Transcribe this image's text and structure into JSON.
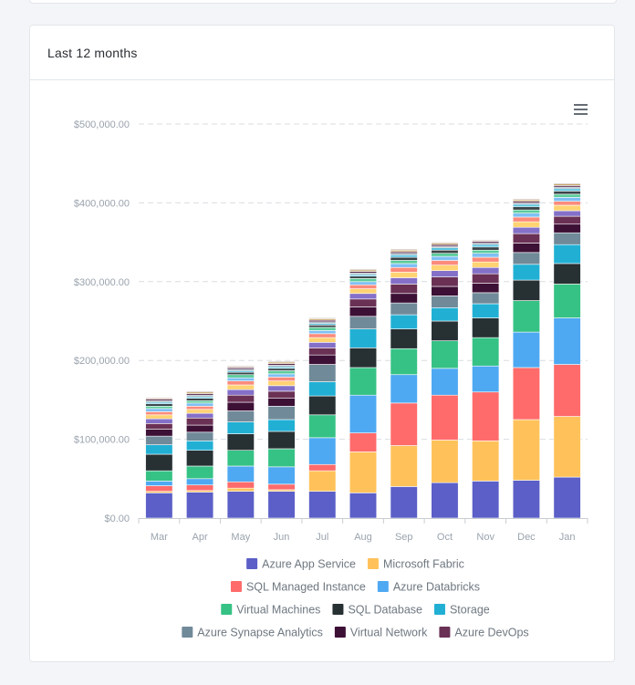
{
  "card": {
    "title": "Last 12 months"
  },
  "menu": {
    "icon": "hamburger-menu-icon"
  },
  "chart_data": {
    "type": "bar",
    "stacked": true,
    "title": "Last 12 months",
    "xlabel": "",
    "ylabel": "",
    "ylim": [
      0,
      500000
    ],
    "yticks": [
      0,
      100000,
      200000,
      300000,
      400000,
      500000
    ],
    "ytick_labels": [
      "$0.00",
      "$100,000.00",
      "$200,000.00",
      "$300,000.00",
      "$400,000.00",
      "$500,000.00"
    ],
    "grid": true,
    "legend_position": "bottom",
    "categories": [
      "Mar",
      "Apr",
      "May",
      "Jun",
      "Jul",
      "Aug",
      "Sep",
      "Oct",
      "Nov",
      "Dec",
      "Jan"
    ],
    "series": [
      {
        "name": "Azure App Service",
        "color": "#5b5fc7",
        "legend": true,
        "values": [
          32000,
          33000,
          34000,
          34000,
          34000,
          32000,
          40000,
          45000,
          47000,
          48000,
          52000
        ]
      },
      {
        "name": "Microsoft Fabric",
        "color": "#ffc25a",
        "legend": true,
        "values": [
          2000,
          2000,
          4000,
          2000,
          26000,
          52000,
          52000,
          54000,
          51000,
          77000,
          77000
        ]
      },
      {
        "name": "SQL Managed Instance",
        "color": "#ff6b6b",
        "legend": true,
        "values": [
          7000,
          7000,
          8000,
          7000,
          8000,
          24000,
          54000,
          57000,
          62000,
          66000,
          66000
        ]
      },
      {
        "name": "Azure Databricks",
        "color": "#4ea9f2",
        "legend": true,
        "values": [
          6000,
          8000,
          20000,
          22000,
          34000,
          48000,
          36000,
          34000,
          33000,
          45000,
          59000
        ]
      },
      {
        "name": "Virtual Machines",
        "color": "#36c285",
        "legend": true,
        "values": [
          13000,
          16000,
          20000,
          23000,
          29000,
          35000,
          33000,
          35000,
          36000,
          40000,
          43000
        ]
      },
      {
        "name": "SQL Database",
        "color": "#273134",
        "legend": true,
        "values": [
          21000,
          20000,
          21000,
          22000,
          24000,
          25000,
          25000,
          25000,
          25000,
          26000,
          26000
        ]
      },
      {
        "name": "Storage",
        "color": "#21b0d4",
        "legend": true,
        "values": [
          12000,
          12000,
          15000,
          15000,
          18000,
          24000,
          18000,
          17000,
          18000,
          20000,
          24000
        ]
      },
      {
        "name": "Azure Synapse Analytics",
        "color": "#708a99",
        "legend": true,
        "values": [
          11000,
          11000,
          14000,
          17000,
          22000,
          16000,
          15000,
          15000,
          14000,
          15000,
          15000
        ]
      },
      {
        "name": "Virtual Network",
        "color": "#3d1036",
        "legend": true,
        "values": [
          9000,
          9000,
          11000,
          10000,
          12000,
          12000,
          12000,
          12000,
          12000,
          12000,
          11000
        ]
      },
      {
        "name": "Azure DevOps",
        "color": "#6a3155",
        "legend": true,
        "values": [
          7000,
          9000,
          9000,
          9000,
          9000,
          10000,
          12000,
          12000,
          12000,
          12000,
          10000
        ]
      },
      {
        "name": "",
        "color": "#8470c8",
        "legend": false,
        "values": [
          6000,
          6000,
          7000,
          7000,
          7000,
          7000,
          8000,
          8000,
          8000,
          8000,
          7000
        ]
      },
      {
        "name": "",
        "color": "#ffd372",
        "legend": false,
        "values": [
          5000,
          5000,
          6000,
          6000,
          6000,
          6000,
          7000,
          7000,
          7000,
          7000,
          7000
        ]
      },
      {
        "name": "",
        "color": "#fb8b7c",
        "legend": false,
        "values": [
          4000,
          4000,
          5000,
          5000,
          5000,
          5000,
          6000,
          6000,
          6000,
          6000,
          5000
        ]
      },
      {
        "name": "",
        "color": "#7ec0f4",
        "legend": false,
        "values": [
          4000,
          4000,
          4000,
          4000,
          4000,
          4000,
          5000,
          5000,
          5000,
          5000,
          5000
        ]
      },
      {
        "name": "",
        "color": "#5ccc9a",
        "legend": false,
        "values": [
          3000,
          3000,
          4000,
          4000,
          4000,
          4000,
          4000,
          4000,
          4000,
          4000,
          4000
        ]
      },
      {
        "name": "",
        "color": "#3b4448",
        "legend": false,
        "values": [
          3000,
          3000,
          3000,
          3000,
          3000,
          3000,
          4000,
          4000,
          4000,
          4000,
          4000
        ]
      },
      {
        "name": "",
        "color": "#55c2de",
        "legend": false,
        "values": [
          2000,
          2000,
          2000,
          2000,
          2000,
          2000,
          3000,
          3000,
          3000,
          3000,
          3000
        ]
      },
      {
        "name": "",
        "color": "#93a5b0",
        "legend": false,
        "values": [
          2000,
          2000,
          2000,
          2000,
          2000,
          2000,
          2000,
          2000,
          2000,
          2000,
          2000
        ]
      },
      {
        "name": "",
        "color": "#562750",
        "legend": false,
        "values": [
          2000,
          2000,
          2000,
          2000,
          2000,
          2000,
          2000,
          2000,
          2000,
          2000,
          2000
        ]
      },
      {
        "name": "",
        "color": "#c9a96a",
        "legend": false,
        "values": [
          1000,
          2000,
          1000,
          2000,
          2000,
          2000,
          2000,
          2000,
          1000,
          2000,
          2000
        ]
      },
      {
        "name": "",
        "color": "#8a6a5c",
        "legend": false,
        "values": [
          1000,
          1000,
          1000,
          1000,
          1000,
          1000,
          1000,
          1000,
          1000,
          1000,
          1000
        ]
      }
    ]
  }
}
